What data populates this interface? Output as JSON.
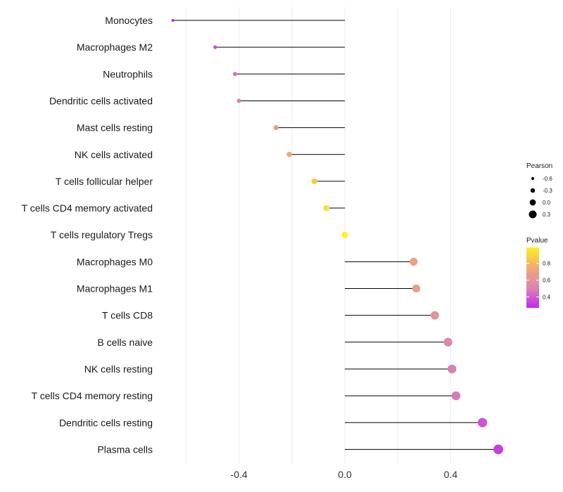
{
  "chart_data": {
    "type": "lollipop",
    "xlabel": "",
    "ylabel": "",
    "xlim": [
      -0.65,
      0.6
    ],
    "xticks": [
      {
        "value": -0.4,
        "label": "-0.4"
      },
      {
        "value": 0.0,
        "label": "0.0"
      },
      {
        "value": 0.4,
        "label": "0.4"
      }
    ],
    "grid": true,
    "points": [
      {
        "category": "Monocytes",
        "pearson": -0.65,
        "pvalue": 0.27
      },
      {
        "category": "Macrophages M2",
        "pearson": -0.49,
        "pvalue": 0.36
      },
      {
        "category": "Neutrophils",
        "pearson": -0.415,
        "pvalue": 0.45
      },
      {
        "category": "Dendritic cells activated",
        "pearson": -0.4,
        "pvalue": 0.5
      },
      {
        "category": "Mast cells resting",
        "pearson": -0.26,
        "pvalue": 0.68
      },
      {
        "category": "NK cells activated",
        "pearson": -0.21,
        "pvalue": 0.75
      },
      {
        "category": "T cells follicular helper",
        "pearson": -0.115,
        "pvalue": 0.86
      },
      {
        "category": "T cells CD4 memory activated",
        "pearson": -0.07,
        "pvalue": 0.93
      },
      {
        "category": "T cells regulatory  Tregs ",
        "pearson": 0.0,
        "pvalue": 0.99
      },
      {
        "category": "Macrophages M0",
        "pearson": 0.26,
        "pvalue": 0.7
      },
      {
        "category": "Macrophages M1",
        "pearson": 0.27,
        "pvalue": 0.68
      },
      {
        "category": "T cells CD8",
        "pearson": 0.34,
        "pvalue": 0.6
      },
      {
        "category": "B cells naive",
        "pearson": 0.39,
        "pvalue": 0.52
      },
      {
        "category": "NK cells resting",
        "pearson": 0.405,
        "pvalue": 0.5
      },
      {
        "category": "T cells CD4 memory resting",
        "pearson": 0.42,
        "pvalue": 0.48
      },
      {
        "category": "Dendritic cells resting",
        "pearson": 0.52,
        "pvalue": 0.38
      },
      {
        "category": "Plasma cells",
        "pearson": 0.58,
        "pvalue": 0.32
      }
    ],
    "legends": {
      "size": {
        "title": "Pearson",
        "entries": [
          {
            "value": -0.6,
            "label": "-0.6"
          },
          {
            "value": -0.3,
            "label": "-0.3"
          },
          {
            "value": 0.0,
            "label": "0.0"
          },
          {
            "value": 0.3,
            "label": "0.3"
          }
        ]
      },
      "color": {
        "title": "Pvalue",
        "range": [
          0.27,
          0.99
        ],
        "ticks": [
          {
            "value": 0.8,
            "label": "0.8"
          },
          {
            "value": 0.6,
            "label": "0.6"
          },
          {
            "value": 0.4,
            "label": "0.4"
          }
        ],
        "colors": [
          "#c428f0",
          "#d986b0",
          "#f0a878",
          "#fff020"
        ]
      }
    },
    "stem_color": "#000000",
    "grid_color": "#ebebeb"
  }
}
